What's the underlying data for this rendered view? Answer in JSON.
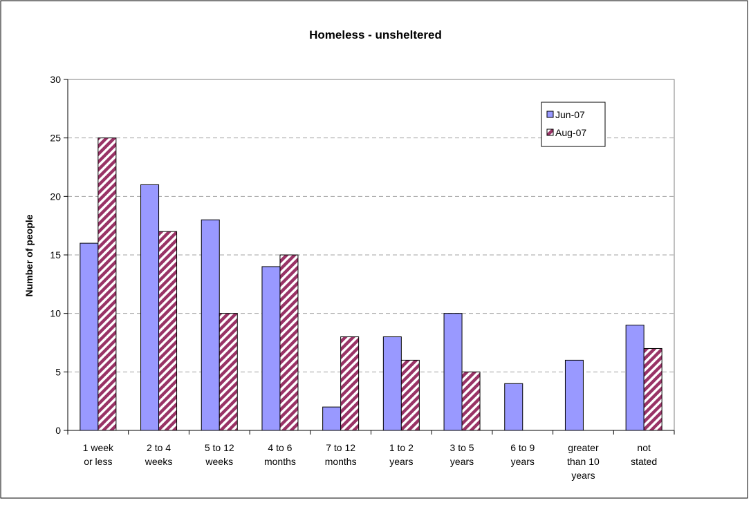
{
  "chart_data": {
    "type": "bar",
    "title": "Homeless - unsheltered",
    "y_label": "Number of people",
    "categories": [
      [
        "1 week",
        "or less"
      ],
      [
        "2 to 4",
        "weeks"
      ],
      [
        "5 to 12",
        "weeks"
      ],
      [
        "4 to 6",
        "months"
      ],
      [
        "7 to 12",
        "months"
      ],
      [
        "1 to 2",
        "years"
      ],
      [
        "3 to 5",
        "years"
      ],
      [
        "6 to 9",
        "years"
      ],
      [
        "greater",
        "than 10",
        "years"
      ],
      [
        "not",
        "stated"
      ]
    ],
    "series": [
      {
        "name": "Jun-07",
        "color": "#9999ff",
        "hatch": false,
        "values": [
          16,
          21,
          18,
          14,
          2,
          8,
          10,
          4,
          6,
          9
        ]
      },
      {
        "name": "Aug-07",
        "color": "#993366",
        "hatch": true,
        "values": [
          25,
          17,
          10,
          15,
          8,
          6,
          5,
          0,
          0,
          7
        ]
      }
    ],
    "ylim": [
      0,
      30
    ],
    "yticks": [
      0,
      5,
      10,
      15,
      20,
      25,
      30
    ],
    "grid": true,
    "legend": "upper right"
  }
}
